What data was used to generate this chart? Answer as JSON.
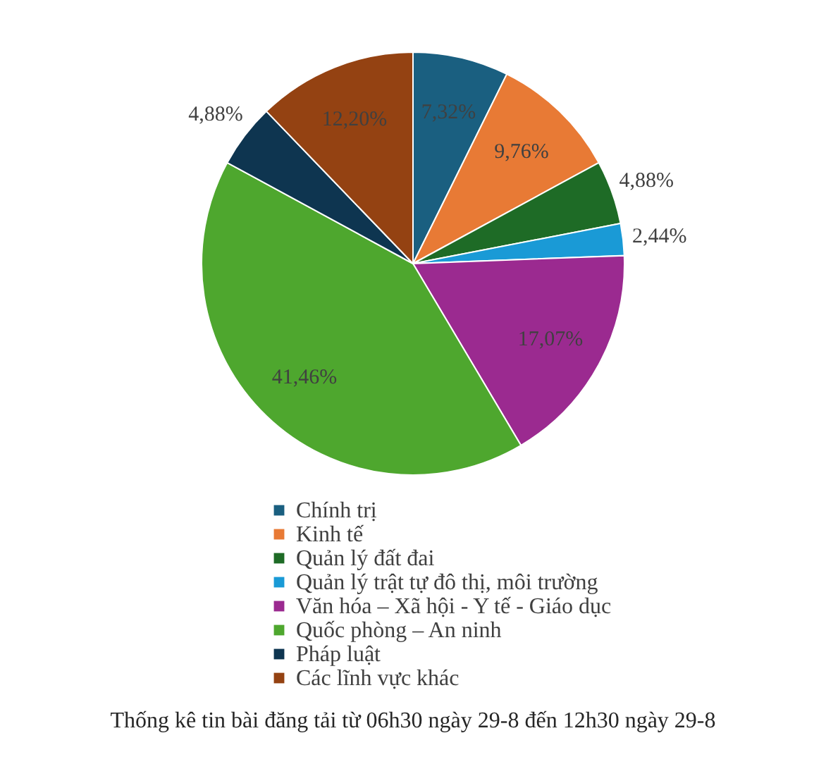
{
  "chart_data": {
    "type": "pie",
    "title": "Thống kê tin bài đăng tải từ 06h30 ngày 29-8 đến 12h30 ngày 29-8",
    "categories": [
      "Chính trị",
      "Kinh tế",
      "Quản lý đất đai",
      "Quản lý trật tự đô thị, môi trường",
      "Văn hóa – Xã hội - Y tế - Giáo dục",
      "Quốc phòng – An ninh",
      "Pháp luật",
      "Các lĩnh vực khác"
    ],
    "values": [
      7.32,
      9.76,
      4.88,
      2.44,
      17.07,
      41.46,
      4.88,
      12.2
    ],
    "value_labels": [
      "7,32%",
      "9,76%",
      "4,88%",
      "2,44%",
      "17,07%",
      "41,46%",
      "4,88%",
      "12,20%"
    ],
    "colors": [
      "#1a5f80",
      "#e87a35",
      "#1e6b26",
      "#1a9ad6",
      "#9b2a90",
      "#4ea72e",
      "#0e3550",
      "#944212"
    ],
    "legend": "bottom"
  }
}
